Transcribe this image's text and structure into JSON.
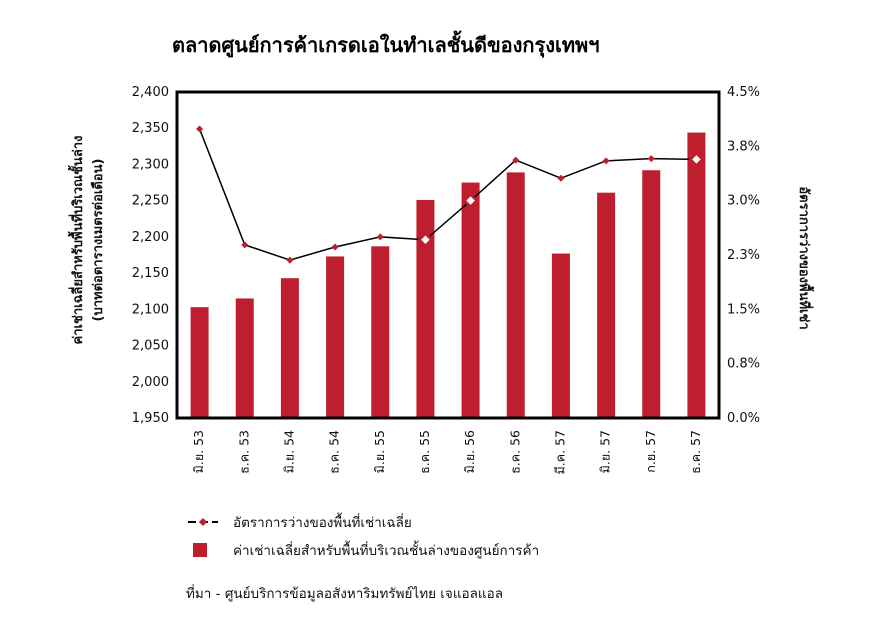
{
  "chart_data": {
    "type": "bar",
    "title": "ตลาดศูนย์การค้าเกรดเอในทำเลชั้นดีของกรุงเทพฯ",
    "categories": [
      "มิ.ย. 53",
      "ธ.ค. 53",
      "มิ.ย. 54",
      "ธ.ค. 54",
      "มิ.ย. 55",
      "ธ.ค. 55",
      "มิ.ย. 56",
      "ธ.ค. 56",
      "มี.ค. 57",
      "มิ.ย. 57",
      "ก.ย. 57",
      "ธ.ค. 57"
    ],
    "highlight_categories": [
      "มี.ค. 57",
      "ธ.ค. 57"
    ],
    "highlight_color": "#b5172b",
    "ylabel_left": "ค่าเช่าเฉลี่ยสำหรับพื้นที่บริเวณชั้นล่าง",
    "ylabel_left_sub": "(บาทต่อตารางเมตรต่อเดือน)",
    "ylabel_right": "อัตราการว่างของพื้นที่เช่า",
    "ylim_left": [
      1950,
      2400
    ],
    "yticks_left": [
      "2,400",
      "2,350",
      "2,300",
      "2,250",
      "2,200",
      "2,150",
      "2,100",
      "2,050",
      "2,000",
      "1,950"
    ],
    "ylim_right": [
      0,
      4.5
    ],
    "yticks_right": [
      "4.5%",
      "3.8%",
      "3.0%",
      "2.3%",
      "1.5%",
      "0.8%",
      "0.0%"
    ],
    "grid": false,
    "series": [
      {
        "name": "ค่าเช่าเฉลี่ยสำหรับพื้นที่บริเวณชั้นล่างของศูนย์การค้า",
        "type": "bar",
        "axis": "left",
        "color": "#be1e2d",
        "values": [
          2103,
          2115,
          2143,
          2173,
          2187,
          2251,
          2275,
          2289,
          2177,
          2261,
          2292,
          2344
        ]
      },
      {
        "name": "อัตราการว่างของพื้นที่เช่าเฉลี่ย",
        "type": "line",
        "axis": "right",
        "color": "#000000",
        "marker_color": "#be1e2d",
        "values": [
          3.99,
          2.39,
          2.18,
          2.36,
          2.5,
          2.46,
          3.0,
          3.56,
          3.31,
          3.55,
          3.58,
          3.57
        ],
        "hollow_markers": [
          5,
          6,
          11
        ]
      }
    ],
    "legend_position": "bottom"
  },
  "source": "ที่มา - ศูนย์บริการข้อมูลอสังหาริมทรัพย์ไทย เจแอลแอล"
}
